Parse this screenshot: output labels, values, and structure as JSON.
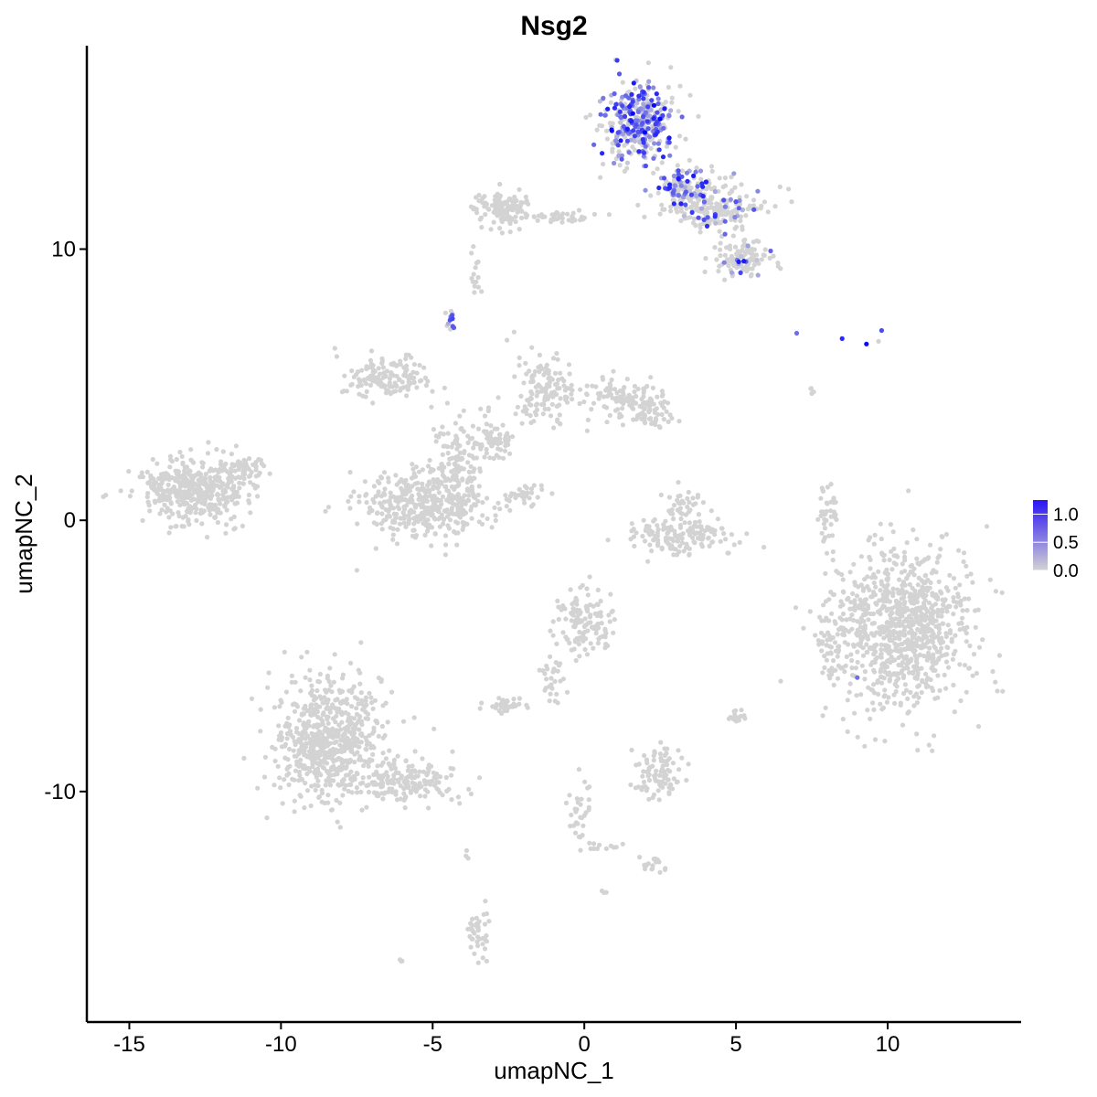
{
  "chart_data": {
    "type": "scatter",
    "title": "Nsg2",
    "xlabel": "umapNC_1",
    "ylabel": "umapNC_2",
    "xlim": [
      -16.4,
      14.4
    ],
    "ylim": [
      -18.5,
      17.5
    ],
    "xticks": [
      -15,
      -10,
      -5,
      0,
      5,
      10
    ],
    "yticks": [
      -10,
      0,
      10
    ],
    "xtick_labels": [
      "-15",
      "-10",
      "-5",
      "0",
      "5",
      "10"
    ],
    "ytick_labels": [
      "-10",
      "0",
      "10"
    ],
    "grid": false,
    "legend": {
      "placement": "right",
      "labels": [
        "1.0",
        "0.5",
        "0.0"
      ],
      "values": [
        1.0,
        0.5,
        0.0
      ],
      "max": 1.25,
      "color_low": "#d3d3d3",
      "color_high": "#0000ff"
    },
    "clusters": [
      {
        "cx": -12.9,
        "cy": 1.1,
        "sx": 1.1,
        "sy": 0.7,
        "n": 420,
        "expr": 0
      },
      {
        "cx": -11.4,
        "cy": 1.8,
        "sx": 0.5,
        "sy": 0.4,
        "n": 60,
        "expr": 0
      },
      {
        "cx": -5.2,
        "cy": 0.6,
        "sx": 1.3,
        "sy": 0.8,
        "n": 400,
        "expr": 0
      },
      {
        "cx": -4.1,
        "cy": 2.3,
        "sx": 0.5,
        "sy": 1.1,
        "n": 120,
        "expr": 0
      },
      {
        "cx": -6.5,
        "cy": 5.2,
        "sx": 0.9,
        "sy": 0.5,
        "n": 140,
        "expr": 0
      },
      {
        "cx": -1.3,
        "cy": 4.8,
        "sx": 0.6,
        "sy": 0.9,
        "n": 130,
        "expr": 0
      },
      {
        "cx": 1.2,
        "cy": 4.5,
        "sx": 0.8,
        "sy": 0.5,
        "n": 100,
        "expr": 0
      },
      {
        "cx": 2.2,
        "cy": 4.0,
        "sx": 0.5,
        "sy": 0.4,
        "n": 60,
        "expr": 0
      },
      {
        "cx": -3.0,
        "cy": 3.0,
        "sx": 0.4,
        "sy": 0.4,
        "n": 60,
        "expr": 0
      },
      {
        "cx": -1.9,
        "cy": 0.9,
        "sx": 0.5,
        "sy": 0.3,
        "n": 30,
        "expr": 0
      },
      {
        "cx": 3.2,
        "cy": -0.6,
        "sx": 1.0,
        "sy": 0.4,
        "n": 150,
        "expr": 0
      },
      {
        "cx": 3.3,
        "cy": 0.5,
        "sx": 0.4,
        "sy": 0.5,
        "n": 40,
        "expr": 0
      },
      {
        "cx": 8.0,
        "cy": 0.2,
        "sx": 0.2,
        "sy": 0.7,
        "n": 40,
        "expr": 0
      },
      {
        "cx": 10.5,
        "cy": -4.0,
        "sx": 1.4,
        "sy": 1.8,
        "n": 900,
        "expr": 0
      },
      {
        "cx": 8.2,
        "cy": -4.8,
        "sx": 0.3,
        "sy": 0.7,
        "n": 40,
        "expr": 0
      },
      {
        "cx": -8.5,
        "cy": -8.0,
        "sx": 1.1,
        "sy": 1.4,
        "n": 650,
        "expr": 0
      },
      {
        "cx": -5.8,
        "cy": -9.6,
        "sx": 1.0,
        "sy": 0.5,
        "n": 160,
        "expr": 0
      },
      {
        "cx": 0.0,
        "cy": -3.8,
        "sx": 0.6,
        "sy": 0.7,
        "n": 130,
        "expr": 0
      },
      {
        "cx": -1.1,
        "cy": -5.8,
        "sx": 0.3,
        "sy": 0.6,
        "n": 30,
        "expr": 0
      },
      {
        "cx": -2.5,
        "cy": -6.8,
        "sx": 0.4,
        "sy": 0.2,
        "n": 40,
        "expr": 0
      },
      {
        "cx": 2.4,
        "cy": -9.2,
        "sx": 0.5,
        "sy": 0.7,
        "n": 90,
        "expr": 0
      },
      {
        "cx": 5.0,
        "cy": -7.3,
        "sx": 0.15,
        "sy": 0.2,
        "n": 14,
        "expr": 0
      },
      {
        "cx": -0.2,
        "cy": -10.7,
        "sx": 0.3,
        "sy": 0.6,
        "n": 30,
        "expr": 0
      },
      {
        "cx": 2.3,
        "cy": -12.7,
        "sx": 0.3,
        "sy": 0.2,
        "n": 18,
        "expr": 0
      },
      {
        "cx": -3.5,
        "cy": -15.1,
        "sx": 0.25,
        "sy": 0.6,
        "n": 40,
        "expr": 0
      },
      {
        "cx": -2.7,
        "cy": 11.5,
        "sx": 0.6,
        "sy": 0.4,
        "n": 140,
        "expr": 0
      },
      {
        "cx": -0.7,
        "cy": 11.2,
        "sx": 0.8,
        "sy": 0.15,
        "n": 40,
        "expr": 0
      },
      {
        "cx": 4.3,
        "cy": 11.5,
        "sx": 1.0,
        "sy": 0.5,
        "n": 200,
        "expr": 0.15
      },
      {
        "cx": 5.2,
        "cy": 9.6,
        "sx": 0.6,
        "sy": 0.4,
        "n": 120,
        "expr": 0.12
      },
      {
        "cx": 1.8,
        "cy": 14.6,
        "sx": 0.8,
        "sy": 0.9,
        "n": 360,
        "expr": 0.55
      },
      {
        "cx": 3.3,
        "cy": 12.2,
        "sx": 0.6,
        "sy": 0.5,
        "n": 120,
        "expr": 0.35
      },
      {
        "cx": -4.4,
        "cy": 7.3,
        "sx": 0.1,
        "sy": 0.2,
        "n": 14,
        "expr": 0.45
      },
      {
        "cx": -3.6,
        "cy": 9.0,
        "sx": 0.1,
        "sy": 0.6,
        "n": 14,
        "expr": 0
      },
      {
        "cx": 7.5,
        "cy": 4.8,
        "sx": 0.05,
        "sy": 0.1,
        "n": 4,
        "expr": 0
      },
      {
        "cx": 0.7,
        "cy": -12.0,
        "sx": 0.5,
        "sy": 0.1,
        "n": 12,
        "expr": 0
      },
      {
        "cx": 0.6,
        "cy": -13.7,
        "sx": 0.05,
        "sy": 0.05,
        "n": 3,
        "expr": 0
      },
      {
        "cx": -6.0,
        "cy": -16.2,
        "sx": 0.05,
        "sy": 0.05,
        "n": 3,
        "expr": 0
      },
      {
        "cx": -3.9,
        "cy": -12.3,
        "sx": 0.05,
        "sy": 0.1,
        "n": 3,
        "expr": 0
      }
    ],
    "points": [
      {
        "x": 1.6,
        "y": 15.0,
        "v": 1.2
      },
      {
        "x": 2.5,
        "y": 14.8,
        "v": 1.2
      },
      {
        "x": 1.2,
        "y": 14.0,
        "v": 1.1
      },
      {
        "x": 2.0,
        "y": 14.3,
        "v": 1.2
      },
      {
        "x": 1.8,
        "y": 13.6,
        "v": 1.0
      },
      {
        "x": 2.8,
        "y": 14.1,
        "v": 1.1
      },
      {
        "x": 1.0,
        "y": 15.2,
        "v": 1.0
      },
      {
        "x": 2.3,
        "y": 15.3,
        "v": 1.2
      },
      {
        "x": 0.9,
        "y": 14.4,
        "v": 1.2
      },
      {
        "x": 2.6,
        "y": 13.4,
        "v": 1.0
      },
      {
        "x": 3.1,
        "y": 12.6,
        "v": 1.1
      },
      {
        "x": 3.6,
        "y": 12.7,
        "v": 1.1
      },
      {
        "x": 3.9,
        "y": 12.3,
        "v": 1.0
      },
      {
        "x": 3.4,
        "y": 12.5,
        "v": 1.0
      },
      {
        "x": 7.0,
        "y": 6.9,
        "v": 0.6
      },
      {
        "x": 8.5,
        "y": 6.7,
        "v": 1.0
      },
      {
        "x": 9.3,
        "y": 6.5,
        "v": 1.2
      },
      {
        "x": 9.8,
        "y": 7.0,
        "v": 0.8
      },
      {
        "x": 9.7,
        "y": 6.6,
        "v": 0.0
      },
      {
        "x": 9.0,
        "y": -5.8,
        "v": 0.6
      },
      {
        "x": -4.4,
        "y": 7.5,
        "v": 0.6
      },
      {
        "x": -4.3,
        "y": 7.1,
        "v": 0.7
      }
    ]
  }
}
